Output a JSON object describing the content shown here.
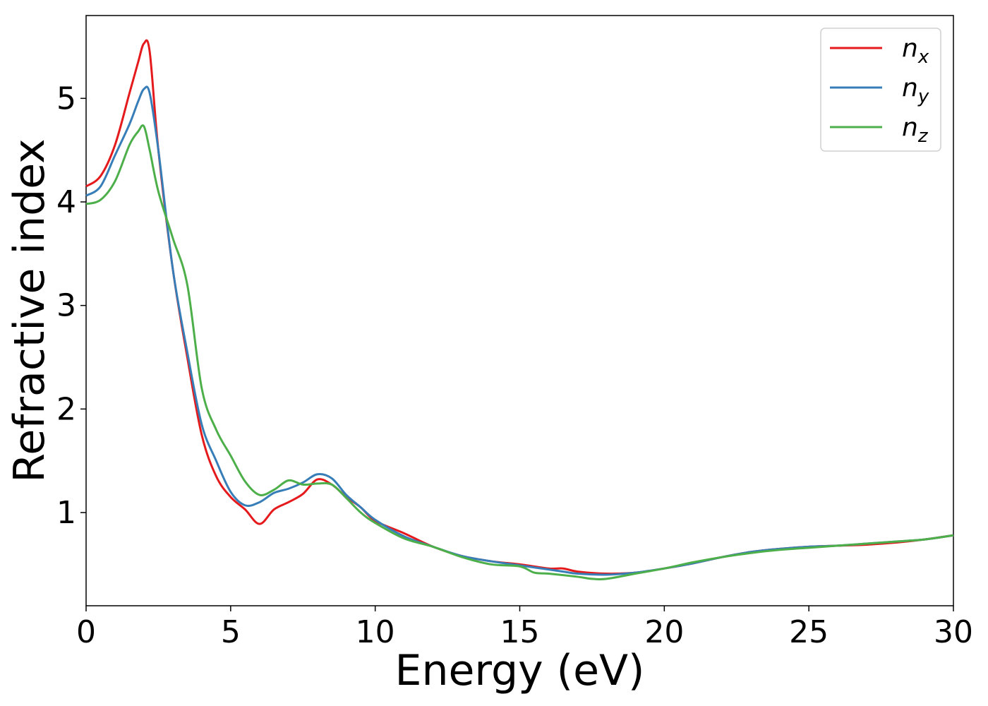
{
  "chart_data": {
    "type": "line",
    "xlabel": "Energy (eV)",
    "ylabel": "Refractive index",
    "xlim": [
      0,
      30
    ],
    "ylim": [
      0.1,
      5.8
    ],
    "xticks": [
      "0",
      "5",
      "10",
      "15",
      "20",
      "25",
      "30"
    ],
    "yticks": [
      "1",
      "2",
      "3",
      "4",
      "5"
    ],
    "grid": false,
    "legend_position": "top-right",
    "series": [
      {
        "name": "n",
        "subscript": "x",
        "color": "#e41a1c",
        "x": [
          0,
          0.5,
          1,
          1.5,
          1.8,
          2.0,
          2.2,
          2.5,
          3,
          3.5,
          4,
          4.5,
          5,
          5.5,
          6,
          6.5,
          7,
          7.5,
          8,
          8.5,
          9,
          9.5,
          10,
          11,
          12,
          13,
          14,
          15,
          16,
          16.5,
          17,
          18,
          19,
          20,
          21,
          22,
          23,
          24,
          25,
          26,
          27,
          28,
          29,
          30
        ],
        "y": [
          4.15,
          4.25,
          4.55,
          5.05,
          5.35,
          5.53,
          5.45,
          4.5,
          3.35,
          2.5,
          1.75,
          1.35,
          1.15,
          1.03,
          0.89,
          1.03,
          1.1,
          1.18,
          1.32,
          1.27,
          1.15,
          1.05,
          0.92,
          0.8,
          0.67,
          0.58,
          0.53,
          0.5,
          0.46,
          0.46,
          0.43,
          0.41,
          0.42,
          0.46,
          0.51,
          0.57,
          0.62,
          0.65,
          0.67,
          0.68,
          0.69,
          0.71,
          0.74,
          0.78
        ]
      },
      {
        "name": "n",
        "subscript": "y",
        "color": "#377eb8",
        "x": [
          0,
          0.5,
          1,
          1.5,
          1.8,
          2.0,
          2.2,
          2.5,
          3,
          3.5,
          4,
          4.5,
          5,
          5.5,
          6,
          6.5,
          7,
          7.5,
          8,
          8.5,
          9,
          9.5,
          10,
          11,
          12,
          13,
          14,
          15,
          16,
          16.5,
          17,
          18,
          19,
          20,
          21,
          22,
          23,
          24,
          25,
          26,
          27,
          28,
          29,
          30
        ],
        "y": [
          4.06,
          4.15,
          4.45,
          4.75,
          4.97,
          5.09,
          5.05,
          4.5,
          3.35,
          2.55,
          1.85,
          1.5,
          1.2,
          1.07,
          1.1,
          1.19,
          1.23,
          1.29,
          1.37,
          1.33,
          1.17,
          1.05,
          0.93,
          0.77,
          0.67,
          0.58,
          0.53,
          0.49,
          0.45,
          0.43,
          0.41,
          0.4,
          0.42,
          0.46,
          0.51,
          0.57,
          0.62,
          0.65,
          0.67,
          0.68,
          0.7,
          0.72,
          0.74,
          0.78
        ]
      },
      {
        "name": "n",
        "subscript": "z",
        "color": "#4daf4a",
        "x": [
          0,
          0.5,
          1,
          1.5,
          1.8,
          2.0,
          2.2,
          2.5,
          3,
          3.5,
          4,
          4.5,
          5,
          5.5,
          6,
          6.5,
          7,
          7.5,
          8,
          8.5,
          9,
          9.5,
          10,
          11,
          12,
          13,
          14,
          15,
          15.5,
          16,
          17,
          17.5,
          18,
          19,
          20,
          21,
          22,
          23,
          24,
          25,
          26,
          27,
          28,
          29,
          30
        ],
        "y": [
          3.98,
          4.02,
          4.2,
          4.55,
          4.68,
          4.73,
          4.5,
          4.1,
          3.65,
          3.2,
          2.2,
          1.8,
          1.55,
          1.3,
          1.17,
          1.22,
          1.31,
          1.27,
          1.28,
          1.27,
          1.14,
          1.0,
          0.9,
          0.75,
          0.67,
          0.57,
          0.5,
          0.48,
          0.42,
          0.41,
          0.38,
          0.36,
          0.36,
          0.41,
          0.46,
          0.52,
          0.57,
          0.61,
          0.64,
          0.66,
          0.68,
          0.7,
          0.72,
          0.74,
          0.78
        ]
      }
    ]
  }
}
